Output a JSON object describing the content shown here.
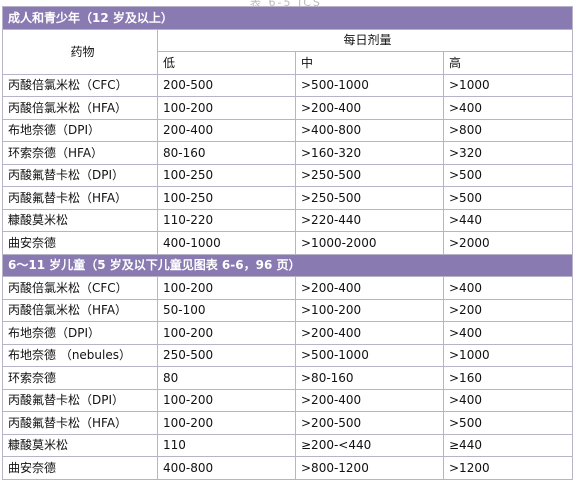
{
  "partial_heading": "表 6-5 ICS",
  "header": {
    "drug": "药物",
    "daily_dose": "每日剂量",
    "low": "低",
    "mid": "中",
    "high": "高"
  },
  "sections": [
    {
      "title": "成人和青少年（12 岁及以上）",
      "rows": [
        {
          "drug": "丙酸倍氯米松（CFC）",
          "low": "200-500",
          "mid": ">500-1000",
          "high": ">1000"
        },
        {
          "drug": "丙酸倍氯米松（HFA）",
          "low": "100-200",
          "mid": ">200-400",
          "high": ">400"
        },
        {
          "drug": "布地奈德（DPI）",
          "low": "200-400",
          "mid": ">400-800",
          "high": ">800"
        },
        {
          "drug": "环索奈德（HFA）",
          "low": "80-160",
          "mid": ">160-320",
          "high": ">320"
        },
        {
          "drug": "丙酸氟替卡松（DPI）",
          "low": "100-250",
          "mid": ">250-500",
          "high": ">500"
        },
        {
          "drug": "丙酸氟替卡松（HFA）",
          "low": "100-250",
          "mid": ">250-500",
          "high": ">500"
        },
        {
          "drug": "糠酸莫米松",
          "low": "110-220",
          "mid": ">220-440",
          "high": ">440"
        },
        {
          "drug": "曲安奈德",
          "low": "400-1000",
          "mid": ">1000-2000",
          "high": ">2000"
        }
      ]
    },
    {
      "title": "6～11 岁儿童（5 岁及以下儿童见图表 6-6，96 页）",
      "rows": [
        {
          "drug": "丙酸倍氯米松（CFC）",
          "low": "100-200",
          "mid": ">200-400",
          "high": ">400"
        },
        {
          "drug": "丙酸倍氯米松（HFA）",
          "low": "50-100",
          "mid": ">100-200",
          "high": ">200"
        },
        {
          "drug": "布地奈德（DPI）",
          "low": "100-200",
          "mid": ">200-400",
          "high": ">400"
        },
        {
          "drug": "布地奈德 （nebules）",
          "low": "250-500",
          "mid": ">500-1000",
          "high": ">1000"
        },
        {
          "drug": "环索奈德",
          "low": "80",
          "mid": ">80-160",
          "high": ">160"
        },
        {
          "drug": "丙酸氟替卡松（DPI）",
          "low": "100-200",
          "mid": ">200-400",
          "high": ">400"
        },
        {
          "drug": "丙酸氟替卡松（HFA）",
          "low": "100-200",
          "mid": ">200-500",
          "high": ">500"
        },
        {
          "drug": "糠酸莫米松",
          "low": "110",
          "mid": "≥200-<440",
          "high": "≥440"
        },
        {
          "drug": "曲安奈德",
          "low": "400-800",
          "mid": ">800-1200",
          "high": ">1200"
        }
      ]
    }
  ]
}
